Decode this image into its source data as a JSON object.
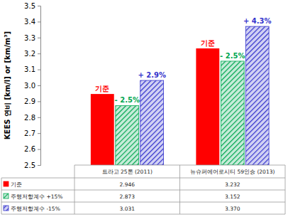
{
  "chart_data": {
    "type": "bar",
    "y_label": "KEES 연비 [km/l] or [km/m³]",
    "categories": [
      "트라고 25톤 (2011)",
      "뉴슈퍼에어로시티 59인승 (2013)"
    ],
    "series": [
      {
        "name": "기준",
        "color": "#ff0000",
        "values": [
          2.946,
          3.232
        ],
        "value_labels": [
          "2.946",
          "3.232"
        ],
        "annotations": [
          "기준",
          "기준"
        ]
      },
      {
        "name": "주행저항계수 +15%",
        "color": "#00a650",
        "values": [
          2.873,
          3.152
        ],
        "value_labels": [
          "2.873",
          "3.152"
        ],
        "annotations": [
          "- 2.5%",
          "- 2.5%"
        ]
      },
      {
        "name": "주행저항계수 -15%",
        "color": "#3333cc",
        "values": [
          3.031,
          3.37
        ],
        "value_labels": [
          "3.031",
          "3.370"
        ],
        "annotations": [
          "+ 2.9%",
          "+ 4.3%"
        ]
      }
    ],
    "ylim": [
      2.5,
      3.5
    ],
    "yticks": [
      2.5,
      2.6,
      2.7,
      2.8,
      2.9,
      {
        "value": 3,
        "label": "3.0"
      },
      3.1,
      3.2,
      3.3,
      3.4,
      3.5
    ],
    "grid": false
  }
}
